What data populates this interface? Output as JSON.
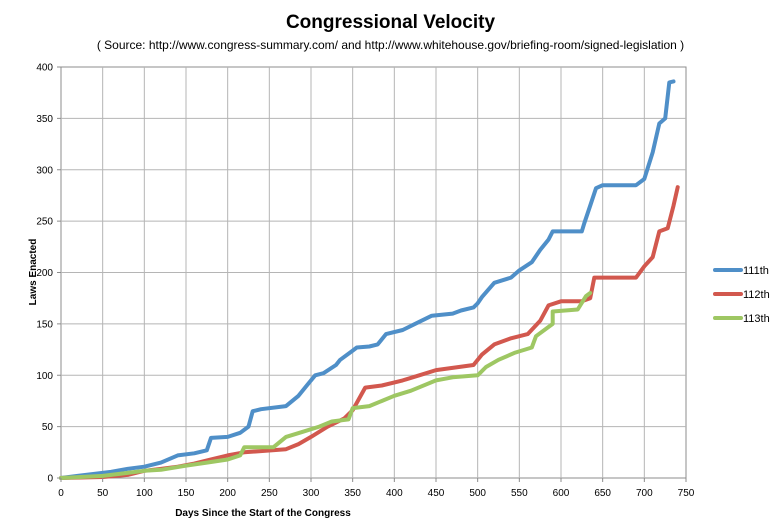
{
  "chart_data": {
    "type": "line",
    "title": "Congressional Velocity",
    "subtitle": "( Source: http://www.congress-summary.com/ and http://www.whitehouse.gov/briefing-room/signed-legislation )",
    "xlabel": "Days Since the Start of the Congress",
    "ylabel": "Laws Enacted",
    "xlim": [
      0,
      750
    ],
    "ylim": [
      0,
      400
    ],
    "xticks": [
      0,
      50,
      100,
      150,
      200,
      250,
      300,
      350,
      400,
      450,
      500,
      550,
      600,
      650,
      700,
      750
    ],
    "yticks": [
      0,
      50,
      100,
      150,
      200,
      250,
      300,
      350,
      400
    ],
    "grid": true,
    "legend": "right",
    "series": [
      {
        "name": "111th",
        "color": "#4f8fc8",
        "points": [
          [
            0,
            0
          ],
          [
            20,
            2
          ],
          [
            40,
            4
          ],
          [
            60,
            6
          ],
          [
            80,
            9
          ],
          [
            100,
            11
          ],
          [
            120,
            15
          ],
          [
            140,
            22
          ],
          [
            160,
            24
          ],
          [
            175,
            27
          ],
          [
            180,
            39
          ],
          [
            200,
            40
          ],
          [
            215,
            44
          ],
          [
            225,
            50
          ],
          [
            230,
            65
          ],
          [
            240,
            67
          ],
          [
            270,
            70
          ],
          [
            285,
            80
          ],
          [
            295,
            90
          ],
          [
            305,
            100
          ],
          [
            315,
            102
          ],
          [
            330,
            110
          ],
          [
            335,
            115
          ],
          [
            350,
            124
          ],
          [
            355,
            127
          ],
          [
            370,
            128
          ],
          [
            380,
            130
          ],
          [
            390,
            140
          ],
          [
            410,
            144
          ],
          [
            430,
            152
          ],
          [
            445,
            158
          ],
          [
            470,
            160
          ],
          [
            480,
            163
          ],
          [
            495,
            166
          ],
          [
            500,
            170
          ],
          [
            505,
            176
          ],
          [
            520,
            190
          ],
          [
            540,
            195
          ],
          [
            550,
            202
          ],
          [
            565,
            210
          ],
          [
            575,
            222
          ],
          [
            585,
            232
          ],
          [
            590,
            240
          ],
          [
            625,
            240
          ],
          [
            628,
            248
          ],
          [
            635,
            265
          ],
          [
            642,
            282
          ],
          [
            650,
            285
          ],
          [
            690,
            285
          ],
          [
            700,
            291
          ],
          [
            710,
            317
          ],
          [
            718,
            345
          ],
          [
            725,
            350
          ],
          [
            730,
            385
          ],
          [
            735,
            386
          ]
        ]
      },
      {
        "name": "112th",
        "color": "#d2584e",
        "points": [
          [
            0,
            0
          ],
          [
            50,
            1
          ],
          [
            80,
            3
          ],
          [
            100,
            7
          ],
          [
            120,
            9
          ],
          [
            140,
            11
          ],
          [
            160,
            14
          ],
          [
            180,
            18
          ],
          [
            200,
            22
          ],
          [
            220,
            25
          ],
          [
            270,
            28
          ],
          [
            285,
            33
          ],
          [
            300,
            40
          ],
          [
            320,
            50
          ],
          [
            340,
            58
          ],
          [
            350,
            66
          ],
          [
            365,
            88
          ],
          [
            385,
            90
          ],
          [
            410,
            95
          ],
          [
            430,
            100
          ],
          [
            450,
            105
          ],
          [
            495,
            110
          ],
          [
            505,
            120
          ],
          [
            520,
            130
          ],
          [
            540,
            136
          ],
          [
            560,
            140
          ],
          [
            575,
            153
          ],
          [
            585,
            168
          ],
          [
            600,
            172
          ],
          [
            625,
            172
          ],
          [
            635,
            175
          ],
          [
            640,
            195
          ],
          [
            690,
            195
          ],
          [
            700,
            206
          ],
          [
            710,
            215
          ],
          [
            718,
            240
          ],
          [
            728,
            243
          ],
          [
            735,
            265
          ],
          [
            740,
            283
          ]
        ]
      },
      {
        "name": "113th",
        "color": "#9ec763",
        "points": [
          [
            0,
            0
          ],
          [
            50,
            2
          ],
          [
            80,
            5
          ],
          [
            100,
            7
          ],
          [
            120,
            8
          ],
          [
            150,
            12
          ],
          [
            175,
            15
          ],
          [
            200,
            18
          ],
          [
            215,
            22
          ],
          [
            220,
            30
          ],
          [
            255,
            30
          ],
          [
            270,
            40
          ],
          [
            290,
            45
          ],
          [
            310,
            50
          ],
          [
            325,
            55
          ],
          [
            345,
            57
          ],
          [
            350,
            68
          ],
          [
            370,
            70
          ],
          [
            400,
            80
          ],
          [
            420,
            85
          ],
          [
            450,
            95
          ],
          [
            470,
            98
          ],
          [
            500,
            100
          ],
          [
            510,
            108
          ],
          [
            525,
            115
          ],
          [
            545,
            122
          ],
          [
            565,
            127
          ],
          [
            570,
            138
          ],
          [
            590,
            150
          ],
          [
            590,
            162
          ],
          [
            620,
            164
          ],
          [
            630,
            177
          ],
          [
            635,
            180
          ]
        ]
      }
    ]
  }
}
